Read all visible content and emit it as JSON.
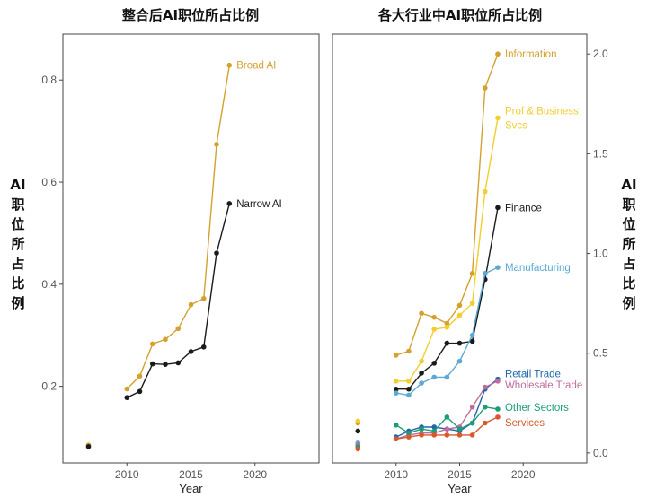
{
  "chart_data": [
    {
      "type": "line",
      "title": "整合后AI职位所占比例",
      "xlabel": "Year",
      "ylabel": "AI职位所占比例",
      "ylabel_side": "left",
      "xlim": [
        2005,
        2025
      ],
      "ylim": [
        0.05,
        0.89
      ],
      "x_ticks": [
        2010,
        2015,
        2020
      ],
      "y_ticks": [
        0.2,
        0.4,
        0.6,
        0.8
      ],
      "grid": false,
      "series": [
        {
          "name": "Broad AI",
          "color": "#D4A12E",
          "points": [
            {
              "x": 2007,
              "y": 0.085
            },
            {
              "x": 2010,
              "y": 0.195
            },
            {
              "x": 2011,
              "y": 0.22
            },
            {
              "x": 2012,
              "y": 0.283
            },
            {
              "x": 2013,
              "y": 0.292
            },
            {
              "x": 2014,
              "y": 0.313
            },
            {
              "x": 2015,
              "y": 0.36
            },
            {
              "x": 2016,
              "y": 0.372
            },
            {
              "x": 2017,
              "y": 0.674
            },
            {
              "x": 2018,
              "y": 0.829
            }
          ],
          "gaps_after": [
            2007
          ]
        },
        {
          "name": "Narrow AI",
          "color": "#1A1A1A",
          "points": [
            {
              "x": 2007,
              "y": 0.082
            },
            {
              "x": 2010,
              "y": 0.178
            },
            {
              "x": 2011,
              "y": 0.19
            },
            {
              "x": 2012,
              "y": 0.244
            },
            {
              "x": 2013,
              "y": 0.243
            },
            {
              "x": 2014,
              "y": 0.246
            },
            {
              "x": 2015,
              "y": 0.268
            },
            {
              "x": 2016,
              "y": 0.277
            },
            {
              "x": 2017,
              "y": 0.461
            },
            {
              "x": 2018,
              "y": 0.558
            }
          ],
          "gaps_after": [
            2007
          ]
        }
      ]
    },
    {
      "type": "line",
      "title": "各大行业中AI职位所占比例",
      "xlabel": "Year",
      "ylabel": "AI职位所占比例",
      "ylabel_side": "right",
      "xlim": [
        2005,
        2025
      ],
      "ylim": [
        -0.05,
        2.1
      ],
      "x_ticks": [
        2010,
        2015,
        2020
      ],
      "y_ticks": [
        0.0,
        0.5,
        1.0,
        1.5,
        2.0
      ],
      "grid": false,
      "series": [
        {
          "name": "Information",
          "color": "#D4A12E",
          "points": [
            {
              "x": 2007,
              "y": 0.15
            },
            {
              "x": 2010,
              "y": 0.49
            },
            {
              "x": 2011,
              "y": 0.51
            },
            {
              "x": 2012,
              "y": 0.7
            },
            {
              "x": 2013,
              "y": 0.68
            },
            {
              "x": 2014,
              "y": 0.65
            },
            {
              "x": 2015,
              "y": 0.74
            },
            {
              "x": 2016,
              "y": 0.9
            },
            {
              "x": 2017,
              "y": 1.83
            },
            {
              "x": 2018,
              "y": 2.0
            }
          ],
          "gaps_after": [
            2007
          ]
        },
        {
          "name": "Prof & Business Svcs",
          "color": "#F2CE2E",
          "points": [
            {
              "x": 2007,
              "y": 0.16
            },
            {
              "x": 2010,
              "y": 0.36
            },
            {
              "x": 2011,
              "y": 0.36
            },
            {
              "x": 2012,
              "y": 0.46
            },
            {
              "x": 2013,
              "y": 0.62
            },
            {
              "x": 2014,
              "y": 0.63
            },
            {
              "x": 2015,
              "y": 0.69
            },
            {
              "x": 2016,
              "y": 0.75
            },
            {
              "x": 2017,
              "y": 1.31
            },
            {
              "x": 2018,
              "y": 1.68
            }
          ],
          "gaps_after": [
            2007
          ]
        },
        {
          "name": "Finance",
          "color": "#1A1A1A",
          "points": [
            {
              "x": 2007,
              "y": 0.11
            },
            {
              "x": 2010,
              "y": 0.32
            },
            {
              "x": 2011,
              "y": 0.32
            },
            {
              "x": 2012,
              "y": 0.4
            },
            {
              "x": 2013,
              "y": 0.45
            },
            {
              "x": 2014,
              "y": 0.55
            },
            {
              "x": 2015,
              "y": 0.55
            },
            {
              "x": 2016,
              "y": 0.56
            },
            {
              "x": 2017,
              "y": 0.87
            },
            {
              "x": 2018,
              "y": 1.23
            }
          ],
          "gaps_after": [
            2007
          ]
        },
        {
          "name": "Manufacturing",
          "color": "#5BA9D4",
          "points": [
            {
              "x": 2007,
              "y": 0.05
            },
            {
              "x": 2010,
              "y": 0.3
            },
            {
              "x": 2011,
              "y": 0.29
            },
            {
              "x": 2012,
              "y": 0.35
            },
            {
              "x": 2013,
              "y": 0.38
            },
            {
              "x": 2014,
              "y": 0.38
            },
            {
              "x": 2015,
              "y": 0.46
            },
            {
              "x": 2016,
              "y": 0.59
            },
            {
              "x": 2017,
              "y": 0.9
            },
            {
              "x": 2018,
              "y": 0.93
            }
          ],
          "gaps_after": [
            2007
          ]
        },
        {
          "name": "Retail Trade",
          "color": "#2166AC",
          "points": [
            {
              "x": 2007,
              "y": 0.04
            },
            {
              "x": 2010,
              "y": 0.08
            },
            {
              "x": 2011,
              "y": 0.11
            },
            {
              "x": 2012,
              "y": 0.13
            },
            {
              "x": 2013,
              "y": 0.13
            },
            {
              "x": 2014,
              "y": 0.12
            },
            {
              "x": 2015,
              "y": 0.11
            },
            {
              "x": 2016,
              "y": 0.15
            },
            {
              "x": 2017,
              "y": 0.32
            },
            {
              "x": 2018,
              "y": 0.37
            }
          ],
          "gaps_after": [
            2007
          ]
        },
        {
          "name": "Wholesale Trade",
          "color": "#C06C9E",
          "points": [
            {
              "x": 2007,
              "y": 0.04
            },
            {
              "x": 2010,
              "y": 0.07
            },
            {
              "x": 2011,
              "y": 0.09
            },
            {
              "x": 2012,
              "y": 0.1
            },
            {
              "x": 2013,
              "y": 0.1
            },
            {
              "x": 2014,
              "y": 0.12
            },
            {
              "x": 2015,
              "y": 0.13
            },
            {
              "x": 2016,
              "y": 0.23
            },
            {
              "x": 2017,
              "y": 0.33
            },
            {
              "x": 2018,
              "y": 0.36
            }
          ],
          "gaps_after": [
            2007
          ]
        },
        {
          "name": "Other Sectors",
          "color": "#1B9E77",
          "points": [
            {
              "x": 2007,
              "y": 0.03
            },
            {
              "x": 2010,
              "y": 0.14
            },
            {
              "x": 2011,
              "y": 0.1
            },
            {
              "x": 2012,
              "y": 0.12
            },
            {
              "x": 2013,
              "y": 0.11
            },
            {
              "x": 2014,
              "y": 0.18
            },
            {
              "x": 2015,
              "y": 0.12
            },
            {
              "x": 2016,
              "y": 0.15
            },
            {
              "x": 2017,
              "y": 0.23
            },
            {
              "x": 2018,
              "y": 0.22
            }
          ],
          "gaps_after": [
            2007
          ]
        },
        {
          "name": "Services",
          "color": "#D9572E",
          "points": [
            {
              "x": 2007,
              "y": 0.02
            },
            {
              "x": 2010,
              "y": 0.07
            },
            {
              "x": 2011,
              "y": 0.08
            },
            {
              "x": 2012,
              "y": 0.09
            },
            {
              "x": 2013,
              "y": 0.09
            },
            {
              "x": 2014,
              "y": 0.09
            },
            {
              "x": 2015,
              "y": 0.09
            },
            {
              "x": 2016,
              "y": 0.09
            },
            {
              "x": 2017,
              "y": 0.15
            },
            {
              "x": 2018,
              "y": 0.18
            }
          ],
          "gaps_after": [
            2007
          ]
        }
      ]
    }
  ]
}
